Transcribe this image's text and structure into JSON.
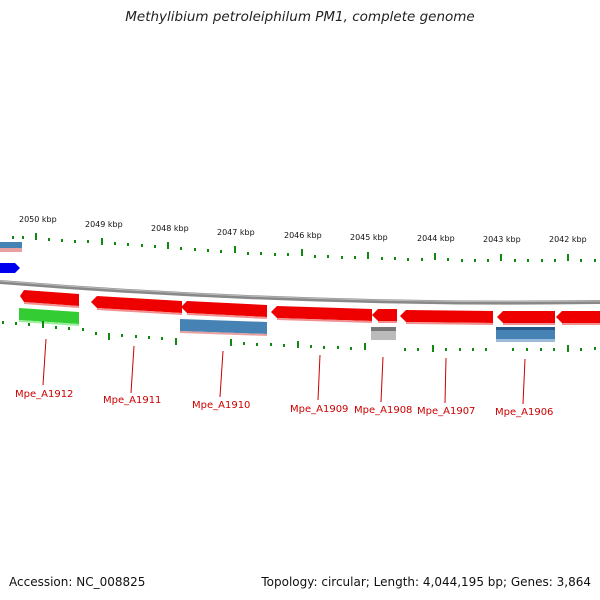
{
  "title": "Methylibium petroleiphilum PM1, complete genome",
  "footer": {
    "accession": "Accession: NC_008825",
    "topology": "Topology: circular; Length: 4,044,195 bp; Genes: 3,864"
  },
  "ruler_labels": [
    "2050 kbp",
    "2049 kbp",
    "2048 kbp",
    "2047 kbp",
    "2046 kbp",
    "2045 kbp",
    "2044 kbp",
    "2043 kbp",
    "2042 kbp"
  ],
  "gene_labels": [
    "Mpe_A1912",
    "Mpe_A1911",
    "Mpe_A1910",
    "Mpe_A1909",
    "Mpe_A1908",
    "Mpe_A1907",
    "Mpe_A1906"
  ],
  "colors": {
    "cds": "#ee0000",
    "blue_feature": "#4682b4",
    "green_feature": "#33cc33",
    "grey_feature": "#aaaaaa",
    "tick": "#118811",
    "backbone": "#888888",
    "label": "#cc0000"
  }
}
